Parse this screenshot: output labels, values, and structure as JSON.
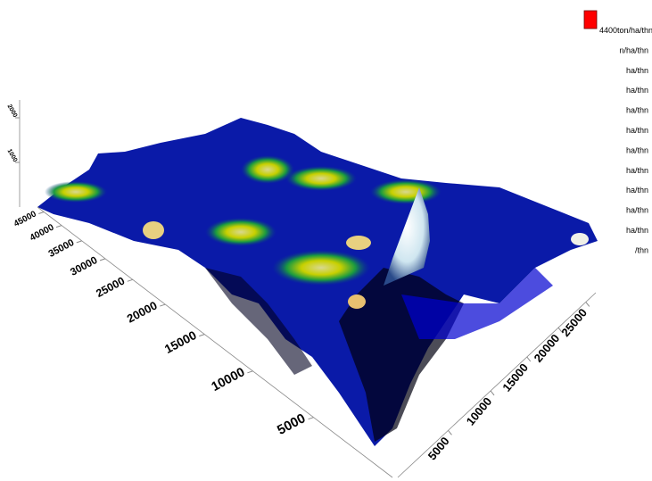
{
  "chart_data": {
    "type": "surface3d",
    "xlim": [
      0,
      27000
    ],
    "xticks": [
      5000,
      10000,
      15000,
      20000,
      25000
    ],
    "ylim": [
      0,
      47000
    ],
    "yticks": [
      5000,
      10000,
      15000,
      20000,
      25000,
      30000,
      35000,
      40000,
      45000
    ],
    "zlim": [
      0,
      2400
    ],
    "zticks": [
      1000,
      2000
    ],
    "legend": {
      "color": "#ff0000",
      "labels": [
        "4400ton/ha/thn",
        "n/ha/thn",
        "ha/thn",
        "ha/thn",
        "ha/thn",
        "ha/thn",
        "ha/thn",
        "ha/thn",
        "ha/thn",
        "ha/thn",
        "ha/thn",
        "/thn"
      ]
    }
  }
}
